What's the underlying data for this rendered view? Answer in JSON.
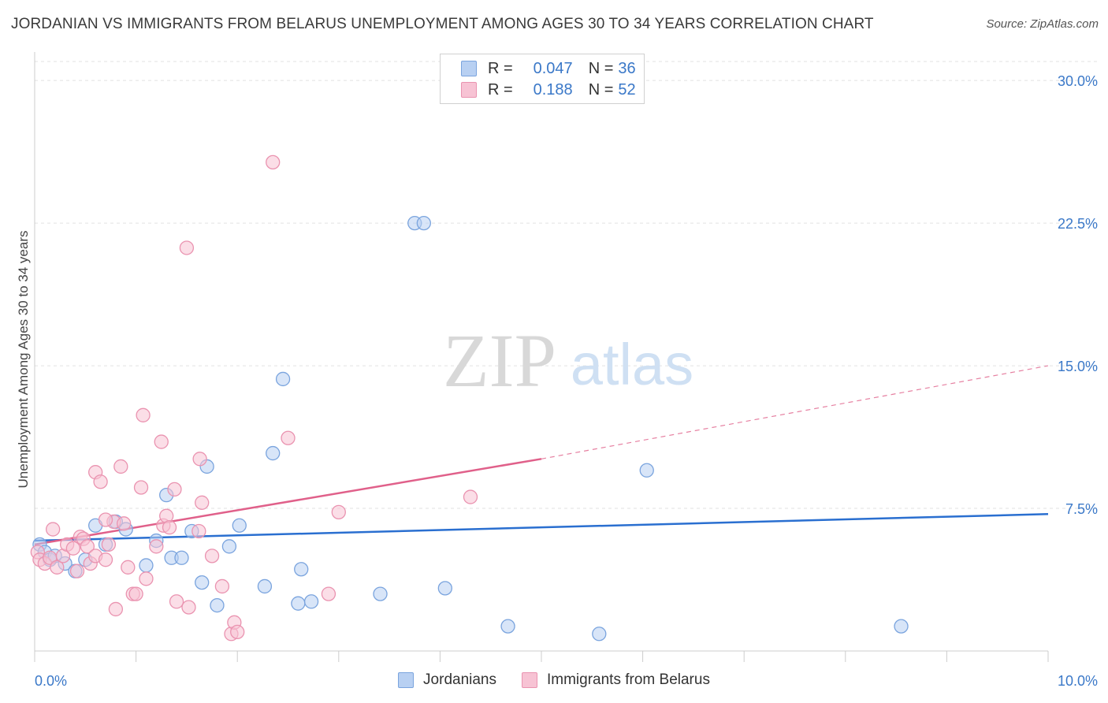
{
  "title": "JORDANIAN VS IMMIGRANTS FROM BELARUS UNEMPLOYMENT AMONG AGES 30 TO 34 YEARS CORRELATION CHART",
  "source": "Source: ZipAtlas.com",
  "watermark": {
    "zip": "ZIP",
    "atlas": "atlas"
  },
  "legend": {
    "r_label": "R =",
    "n_label": "N =",
    "rows": [
      {
        "r": "0.047",
        "n": "36"
      },
      {
        "r": "0.188",
        "n": "52"
      }
    ]
  },
  "colors": {
    "blue_fill": "#b8d0f2",
    "blue_stroke": "#7aa4de",
    "blue_line": "#2a6fd0",
    "pink_fill": "#f7c3d4",
    "pink_stroke": "#ea93b0",
    "pink_line": "#e0608a",
    "axis_text": "#3a78c8",
    "grid": "#e2e2e2"
  },
  "chart_data": {
    "type": "scatter",
    "title": "JORDANIAN VS IMMIGRANTS FROM BELARUS UNEMPLOYMENT AMONG AGES 30 TO 34 YEARS CORRELATION CHART",
    "xlabel": "",
    "ylabel": "Unemployment Among Ages 30 to 34 years",
    "xlim": [
      0,
      10
    ],
    "ylim": [
      0,
      31
    ],
    "x_tick_labels": [
      "0.0%",
      "10.0%"
    ],
    "y_ticks": [
      7.5,
      15.0,
      22.5,
      30.0
    ],
    "y_tick_labels": [
      "7.5%",
      "15.0%",
      "22.5%",
      "30.0%"
    ],
    "grid": true,
    "legend_position": "top-center",
    "series": [
      {
        "name": "Jordanians",
        "color": "#7aa4de",
        "points": [
          [
            0.05,
            5.6
          ],
          [
            0.1,
            5.2
          ],
          [
            0.15,
            4.8
          ],
          [
            0.2,
            5.0
          ],
          [
            0.3,
            4.6
          ],
          [
            0.4,
            4.2
          ],
          [
            0.5,
            4.8
          ],
          [
            0.6,
            6.6
          ],
          [
            0.7,
            5.6
          ],
          [
            0.8,
            6.8
          ],
          [
            0.9,
            6.4
          ],
          [
            1.1,
            4.5
          ],
          [
            1.2,
            5.8
          ],
          [
            1.3,
            8.2
          ],
          [
            1.35,
            4.9
          ],
          [
            1.45,
            4.9
          ],
          [
            1.55,
            6.3
          ],
          [
            1.65,
            3.6
          ],
          [
            1.7,
            9.7
          ],
          [
            1.8,
            2.4
          ],
          [
            1.92,
            5.5
          ],
          [
            2.02,
            6.6
          ],
          [
            2.27,
            3.4
          ],
          [
            2.35,
            10.4
          ],
          [
            2.45,
            14.3
          ],
          [
            2.6,
            2.5
          ],
          [
            2.63,
            4.3
          ],
          [
            2.73,
            2.6
          ],
          [
            3.41,
            3.0
          ],
          [
            3.75,
            22.5
          ],
          [
            3.84,
            22.5
          ],
          [
            4.05,
            3.3
          ],
          [
            4.67,
            1.3
          ],
          [
            5.57,
            0.9
          ],
          [
            6.04,
            9.5
          ],
          [
            8.55,
            1.3
          ]
        ],
        "trend": {
          "x": [
            0,
            10
          ],
          "y": [
            5.8,
            7.2
          ]
        }
      },
      {
        "name": "Immigrants from Belarus",
        "color": "#ea93b0",
        "points": [
          [
            0.03,
            5.2
          ],
          [
            0.05,
            4.8
          ],
          [
            0.1,
            4.6
          ],
          [
            0.15,
            4.9
          ],
          [
            0.18,
            6.4
          ],
          [
            0.22,
            4.4
          ],
          [
            0.28,
            5.0
          ],
          [
            0.32,
            5.6
          ],
          [
            0.38,
            5.4
          ],
          [
            0.42,
            4.2
          ],
          [
            0.45,
            6.0
          ],
          [
            0.48,
            5.9
          ],
          [
            0.52,
            5.5
          ],
          [
            0.55,
            4.6
          ],
          [
            0.6,
            5.0
          ],
          [
            0.6,
            9.4
          ],
          [
            0.65,
            8.9
          ],
          [
            0.7,
            4.8
          ],
          [
            0.73,
            5.6
          ],
          [
            0.78,
            6.8
          ],
          [
            0.8,
            2.2
          ],
          [
            0.85,
            9.7
          ],
          [
            0.88,
            6.7
          ],
          [
            0.92,
            4.4
          ],
          [
            0.97,
            3.0
          ],
          [
            1.0,
            3.0
          ],
          [
            1.05,
            8.6
          ],
          [
            1.07,
            12.4
          ],
          [
            1.1,
            3.8
          ],
          [
            1.2,
            5.5
          ],
          [
            1.25,
            11.0
          ],
          [
            1.27,
            6.6
          ],
          [
            1.3,
            7.1
          ],
          [
            1.33,
            6.5
          ],
          [
            1.38,
            8.5
          ],
          [
            1.4,
            2.6
          ],
          [
            1.5,
            21.2
          ],
          [
            1.52,
            2.3
          ],
          [
            1.62,
            6.3
          ],
          [
            1.63,
            10.1
          ],
          [
            1.65,
            7.8
          ],
          [
            1.75,
            5.0
          ],
          [
            1.85,
            3.4
          ],
          [
            1.94,
            0.9
          ],
          [
            1.97,
            1.5
          ],
          [
            2.0,
            1.0
          ],
          [
            2.35,
            25.7
          ],
          [
            2.5,
            11.2
          ],
          [
            2.9,
            3.0
          ],
          [
            3.0,
            7.3
          ],
          [
            4.3,
            8.1
          ],
          [
            0.7,
            6.9
          ]
        ],
        "trend": {
          "x": [
            0,
            5
          ],
          "y": [
            5.6,
            10.1
          ]
        },
        "trend_dashed": {
          "x": [
            5,
            10
          ],
          "y": [
            10.1,
            15.0
          ]
        }
      }
    ]
  }
}
